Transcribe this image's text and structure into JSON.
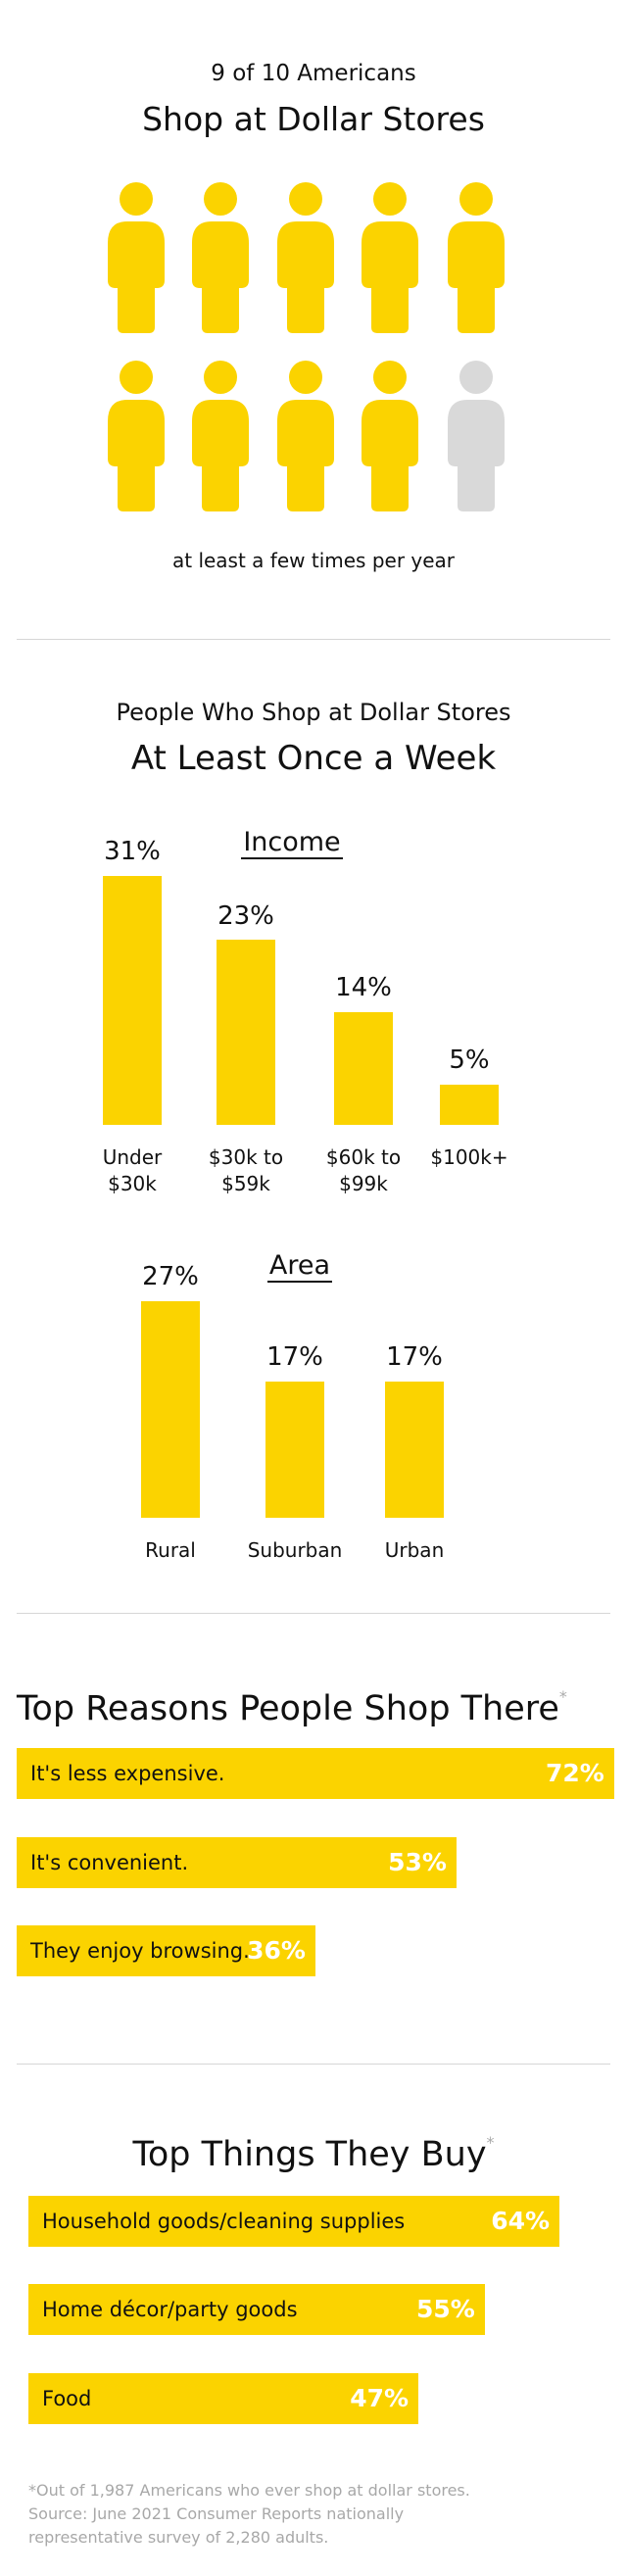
{
  "chart_data": [
    {
      "type": "pictograph",
      "title": "9 of 10 Americans",
      "subtitle": "Shop at Dollar Stores",
      "filled": 9,
      "total": 10,
      "caption": "at least a few times per year",
      "color": "#FBD300",
      "empty_color": "#D9D9D9"
    },
    {
      "type": "bar",
      "title": "People Who Shop at Dollar Stores",
      "subtitle": "At Least Once a Week",
      "label": "Income",
      "categories": [
        "Under $30k",
        "$30k to $59k",
        "$60k to $99k",
        "$100k+"
      ],
      "values": [
        31,
        23,
        14,
        5
      ],
      "value_labels": [
        "31%",
        "23%",
        "14%",
        "5%"
      ],
      "color": "#FBD300"
    },
    {
      "type": "bar",
      "label": "Area",
      "categories": [
        "Rural",
        "Suburban",
        "Urban"
      ],
      "values": [
        27,
        17,
        17
      ],
      "value_labels": [
        "27%",
        "17%",
        "17%"
      ],
      "color": "#FBD300"
    },
    {
      "type": "hbar",
      "title": "Top Reasons People Shop There",
      "note_marker": "*",
      "categories": [
        "It's less expensive.",
        "It's convenient.",
        "They enjoy browsing."
      ],
      "values": [
        72,
        53,
        36
      ],
      "value_labels": [
        "72%",
        "53%",
        "36%"
      ],
      "color": "#FBD300"
    },
    {
      "type": "hbar",
      "title": "Top Things They Buy",
      "note_marker": "*",
      "categories": [
        "Household goods/cleaning supplies",
        "Home décor/party goods",
        "Food"
      ],
      "values": [
        64,
        55,
        47
      ],
      "value_labels": [
        "64%",
        "55%",
        "47%"
      ],
      "color": "#FBD300"
    }
  ],
  "footnote": [
    "*Out of 1,987 Americans who ever shop at dollar stores.",
    "Source: June 2021 Consumer Reports nationally",
    "representative survey of 2,280 adults."
  ]
}
